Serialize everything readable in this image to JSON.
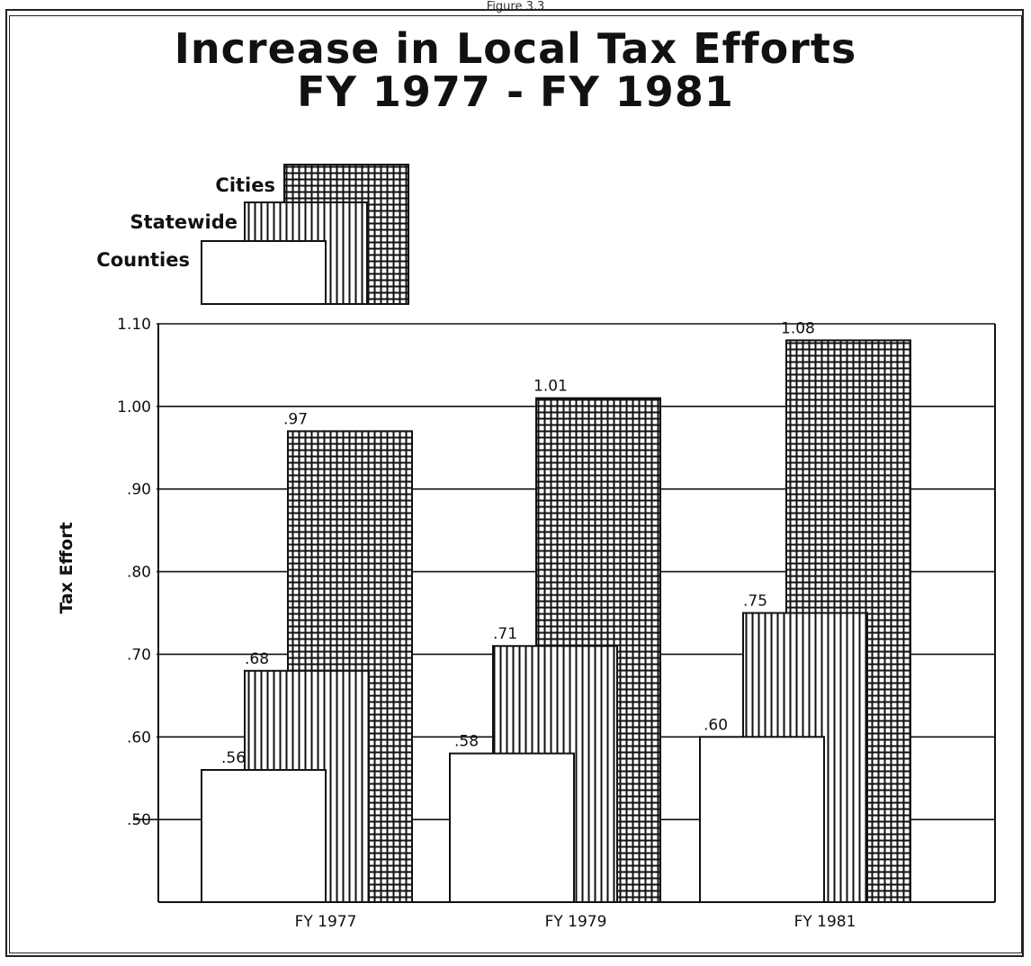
{
  "page": {
    "header": "Figure 3.3"
  },
  "chart_data": {
    "type": "bar",
    "title": "Increase in Local Tax Efforts",
    "subtitle": "FY 1977 - FY 1981",
    "xlabel": "",
    "ylabel": "Tax Effort",
    "categories": [
      "FY 1977",
      "FY 1979",
      "FY 1981"
    ],
    "series": [
      {
        "name": "Counties",
        "values": [
          0.56,
          0.58,
          0.6
        ],
        "labels": [
          ".56",
          ".58",
          ".60"
        ],
        "pattern": "plain"
      },
      {
        "name": "Statewide",
        "values": [
          0.68,
          0.71,
          0.75
        ],
        "labels": [
          ".68",
          ".71",
          ".75"
        ],
        "pattern": "vertical-stripes"
      },
      {
        "name": "Cities",
        "values": [
          0.97,
          1.01,
          1.08
        ],
        "labels": [
          ".97",
          "1.01",
          "1.08"
        ],
        "pattern": "grid"
      }
    ],
    "yticks": [
      {
        "value": 0.5,
        "label": ".50"
      },
      {
        "value": 0.6,
        "label": ".60"
      },
      {
        "value": 0.7,
        "label": ".70"
      },
      {
        "value": 0.8,
        "label": ".80"
      },
      {
        "value": 0.9,
        "label": ".90"
      },
      {
        "value": 1.0,
        "label": "1.00"
      },
      {
        "value": 1.1,
        "label": "1.10"
      }
    ],
    "ylim": [
      0.4,
      1.1
    ],
    "grid": true,
    "legend_position": "top-left",
    "colors": {
      "ink": "#111111",
      "paper": "#ffffff"
    }
  }
}
